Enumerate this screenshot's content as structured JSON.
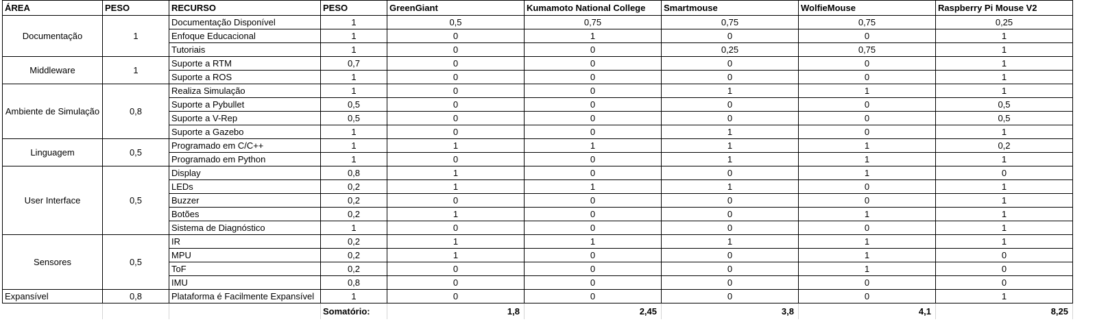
{
  "headers": [
    "ÁREA",
    "PESO",
    "RECURSO",
    "PESO",
    "GreenGiant",
    "Kumamoto National College",
    "Smartmouse",
    "WolfieMouse",
    "Raspberry Pi Mouse V2"
  ],
  "groups": [
    {
      "area": "Documentação",
      "peso": "1",
      "align": "center",
      "rows": [
        {
          "recurso": "Documentação Disponível",
          "peso": "1",
          "scores": [
            "0,5",
            "0,75",
            "0,75",
            "0,75",
            "0,25"
          ]
        },
        {
          "recurso": "Enfoque Educacional",
          "peso": "1",
          "scores": [
            "0",
            "1",
            "0",
            "0",
            "1"
          ]
        },
        {
          "recurso": "Tutoriais",
          "peso": "1",
          "scores": [
            "0",
            "0",
            "0,25",
            "0,75",
            "1"
          ]
        }
      ]
    },
    {
      "area": "Middleware",
      "peso": "1",
      "align": "center",
      "rows": [
        {
          "recurso": "Suporte a RTM",
          "peso": "0,7",
          "scores": [
            "0",
            "0",
            "0",
            "0",
            "1"
          ]
        },
        {
          "recurso": "Suporte a ROS",
          "peso": "1",
          "scores": [
            "0",
            "0",
            "0",
            "0",
            "1"
          ]
        }
      ]
    },
    {
      "area": "Ambiente de Simulação",
      "peso": "0,8",
      "align": "center",
      "rows": [
        {
          "recurso": "Realiza Simulação",
          "peso": "1",
          "scores": [
            "0",
            "0",
            "1",
            "1",
            "1"
          ]
        },
        {
          "recurso": "Suporte a Pybullet",
          "peso": "0,5",
          "scores": [
            "0",
            "0",
            "0",
            "0",
            "0,5"
          ]
        },
        {
          "recurso": "Suporte a V-Rep",
          "peso": "0,5",
          "scores": [
            "0",
            "0",
            "0",
            "0",
            "0,5"
          ]
        },
        {
          "recurso": "Suporte a Gazebo",
          "peso": "1",
          "scores": [
            "0",
            "0",
            "1",
            "0",
            "1"
          ]
        }
      ]
    },
    {
      "area": "Linguagem",
      "peso": "0,5",
      "align": "center",
      "rows": [
        {
          "recurso": "Programado em C/C++",
          "peso": "1",
          "scores": [
            "1",
            "1",
            "1",
            "1",
            "0,2"
          ]
        },
        {
          "recurso": "Programado em Python",
          "peso": "1",
          "scores": [
            "0",
            "0",
            "1",
            "1",
            "1"
          ]
        }
      ]
    },
    {
      "area": "User Interface",
      "peso": "0,5",
      "align": "center",
      "rows": [
        {
          "recurso": "Display",
          "peso": "0,8",
          "scores": [
            "1",
            "0",
            "0",
            "1",
            "0"
          ]
        },
        {
          "recurso": "LEDs",
          "peso": "0,2",
          "scores": [
            "1",
            "1",
            "1",
            "0",
            "1"
          ]
        },
        {
          "recurso": "Buzzer",
          "peso": "0,2",
          "scores": [
            "0",
            "0",
            "0",
            "0",
            "1"
          ]
        },
        {
          "recurso": "Botões",
          "peso": "0,2",
          "scores": [
            "1",
            "0",
            "0",
            "1",
            "1"
          ]
        },
        {
          "recurso": "Sistema de Diagnóstico",
          "peso": "1",
          "scores": [
            "0",
            "0",
            "0",
            "0",
            "1"
          ]
        }
      ]
    },
    {
      "area": "Sensores",
      "peso": "0,5",
      "align": "center",
      "rows": [
        {
          "recurso": "IR",
          "peso": "0,2",
          "scores": [
            "1",
            "1",
            "1",
            "1",
            "1"
          ]
        },
        {
          "recurso": "MPU",
          "peso": "0,2",
          "scores": [
            "1",
            "0",
            "0",
            "1",
            "0"
          ]
        },
        {
          "recurso": "ToF",
          "peso": "0,2",
          "scores": [
            "0",
            "0",
            "0",
            "1",
            "0"
          ]
        },
        {
          "recurso": " IMU",
          "peso": "0,8",
          "scores": [
            "0",
            "0",
            "0",
            "0",
            "0"
          ]
        }
      ]
    },
    {
      "area": "Expansível",
      "peso": "0,8",
      "align": "left",
      "rows": [
        {
          "recurso": "Plataforma é Facilmente Expansível",
          "peso": "1",
          "scores": [
            "0",
            "0",
            "0",
            "0",
            "1"
          ]
        }
      ]
    }
  ],
  "summary": {
    "label": "Somatório:",
    "totals": [
      "1,8",
      "2,45",
      "3,8",
      "4,1",
      "8,25"
    ]
  }
}
